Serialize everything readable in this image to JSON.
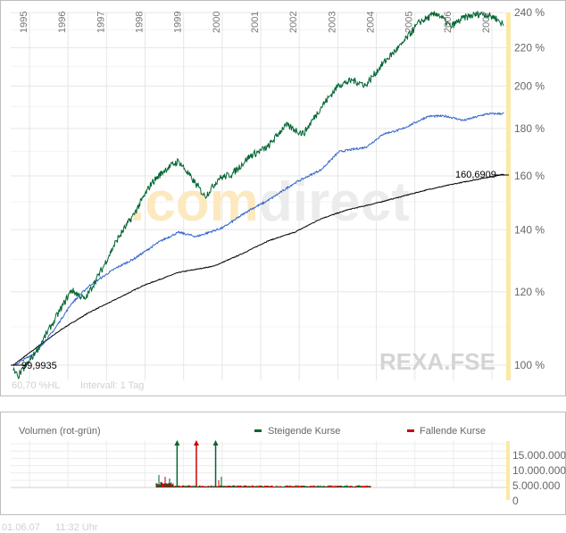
{
  "chart_data": [
    {
      "type": "line",
      "title": "REXA.FSE",
      "watermark": ".comdirect",
      "scale": "log",
      "ylim": [
        96,
        242
      ],
      "xlim": [
        1994.55,
        2007.4
      ],
      "x_ticks": [
        "1995",
        "1996",
        "1997",
        "1998",
        "1999",
        "2000",
        "2001",
        "2002",
        "2003",
        "2004",
        "2005",
        "2006",
        "2007"
      ],
      "y_ticks": [
        "240 %",
        "220 %",
        "200 %",
        "180 %",
        "160 %",
        "140 %",
        "120 %",
        "100 %"
      ],
      "y_tick_values": [
        240,
        220,
        200,
        180,
        160,
        140,
        120,
        100
      ],
      "start_label": "99,9935",
      "end_label": "160,6909",
      "info_hl": "60,70 %HL",
      "info_interval": "Intervall: 1 Tag",
      "grid": true,
      "series": [
        {
          "name": "green",
          "color": "#006633",
          "x": [
            1994.58,
            1994.7,
            1995.16,
            1995.63,
            1996.09,
            1996.44,
            1996.9,
            1997.25,
            1997.71,
            1998.17,
            1998.52,
            1998.87,
            1999.21,
            1999.56,
            1999.91,
            2000.26,
            2000.72,
            2001.18,
            2001.64,
            2002.11,
            2002.57,
            2003.03,
            2003.38,
            2003.73,
            2004.19,
            2004.65,
            2005.12,
            2005.58,
            2005.93,
            2006.27,
            2006.74,
            2007.08,
            2007.31
          ],
          "y": [
            98.7,
            97.2,
            103.2,
            111.5,
            120.5,
            117.8,
            127.3,
            136.1,
            145.5,
            157.2,
            162.5,
            166.1,
            159.0,
            152.0,
            159.0,
            160.7,
            168.1,
            171.8,
            181.6,
            177.6,
            189.9,
            200.6,
            202.8,
            200.6,
            212.0,
            221.6,
            234.4,
            239.7,
            231.8,
            237.0,
            239.7,
            237.0,
            232.8
          ]
        },
        {
          "name": "blue",
          "color": "#3366cc",
          "x": [
            1994.58,
            1995.16,
            1995.63,
            1996.09,
            1996.55,
            1997.25,
            1997.71,
            1998.4,
            1998.87,
            1999.33,
            2000.02,
            2000.72,
            2001.18,
            2001.88,
            2002.57,
            2003.03,
            2003.73,
            2004.19,
            2004.65,
            2005.35,
            2005.81,
            2006.27,
            2006.85,
            2007.31
          ],
          "y": [
            99.8,
            103.2,
            109.0,
            116.5,
            121.8,
            127.3,
            130.2,
            136.1,
            139.1,
            137.6,
            140.7,
            147.1,
            150.4,
            157.2,
            162.5,
            169.9,
            171.8,
            177.6,
            179.6,
            185.6,
            185.6,
            183.6,
            186.6,
            186.8
          ]
        },
        {
          "name": "black",
          "color": "#000000",
          "x": [
            1994.58,
            1995.16,
            1995.86,
            1996.55,
            1997.25,
            1997.94,
            1998.87,
            1999.79,
            2000.49,
            2001.18,
            2001.88,
            2002.57,
            2003.26,
            2003.96,
            2004.65,
            2005.35,
            2006.04,
            2006.74,
            2007.31
          ],
          "y": [
            100.0,
            104.3,
            109.5,
            114.0,
            117.8,
            121.8,
            125.9,
            127.9,
            131.7,
            136.1,
            139.1,
            143.9,
            147.1,
            149.4,
            152.0,
            154.7,
            156.9,
            159.0,
            160.69
          ]
        }
      ]
    },
    {
      "type": "bar",
      "title": "Volumen (rot-grün)",
      "legend": [
        {
          "label": "Steigende Kurse",
          "color": "#006633"
        },
        {
          "label": "Fallende Kurse",
          "color": "#cc0000"
        }
      ],
      "y_ticks": [
        "15.000.000",
        "10.000.000",
        "5.000.000",
        "0"
      ],
      "spikes_clipped": [
        {
          "x": 1998.9,
          "color": "#006633"
        },
        {
          "x": 1999.4,
          "color": "#cc0000"
        },
        {
          "x": 1999.9,
          "color": "#006633"
        }
      ]
    }
  ],
  "footer": {
    "date": "01.06.07",
    "time": "11:32 Uhr"
  },
  "colors": {
    "up": "#006633",
    "down": "#cc0000",
    "blue": "#3366cc",
    "highlight": "#fbe9a6",
    "grid": "#e6e6e6"
  }
}
